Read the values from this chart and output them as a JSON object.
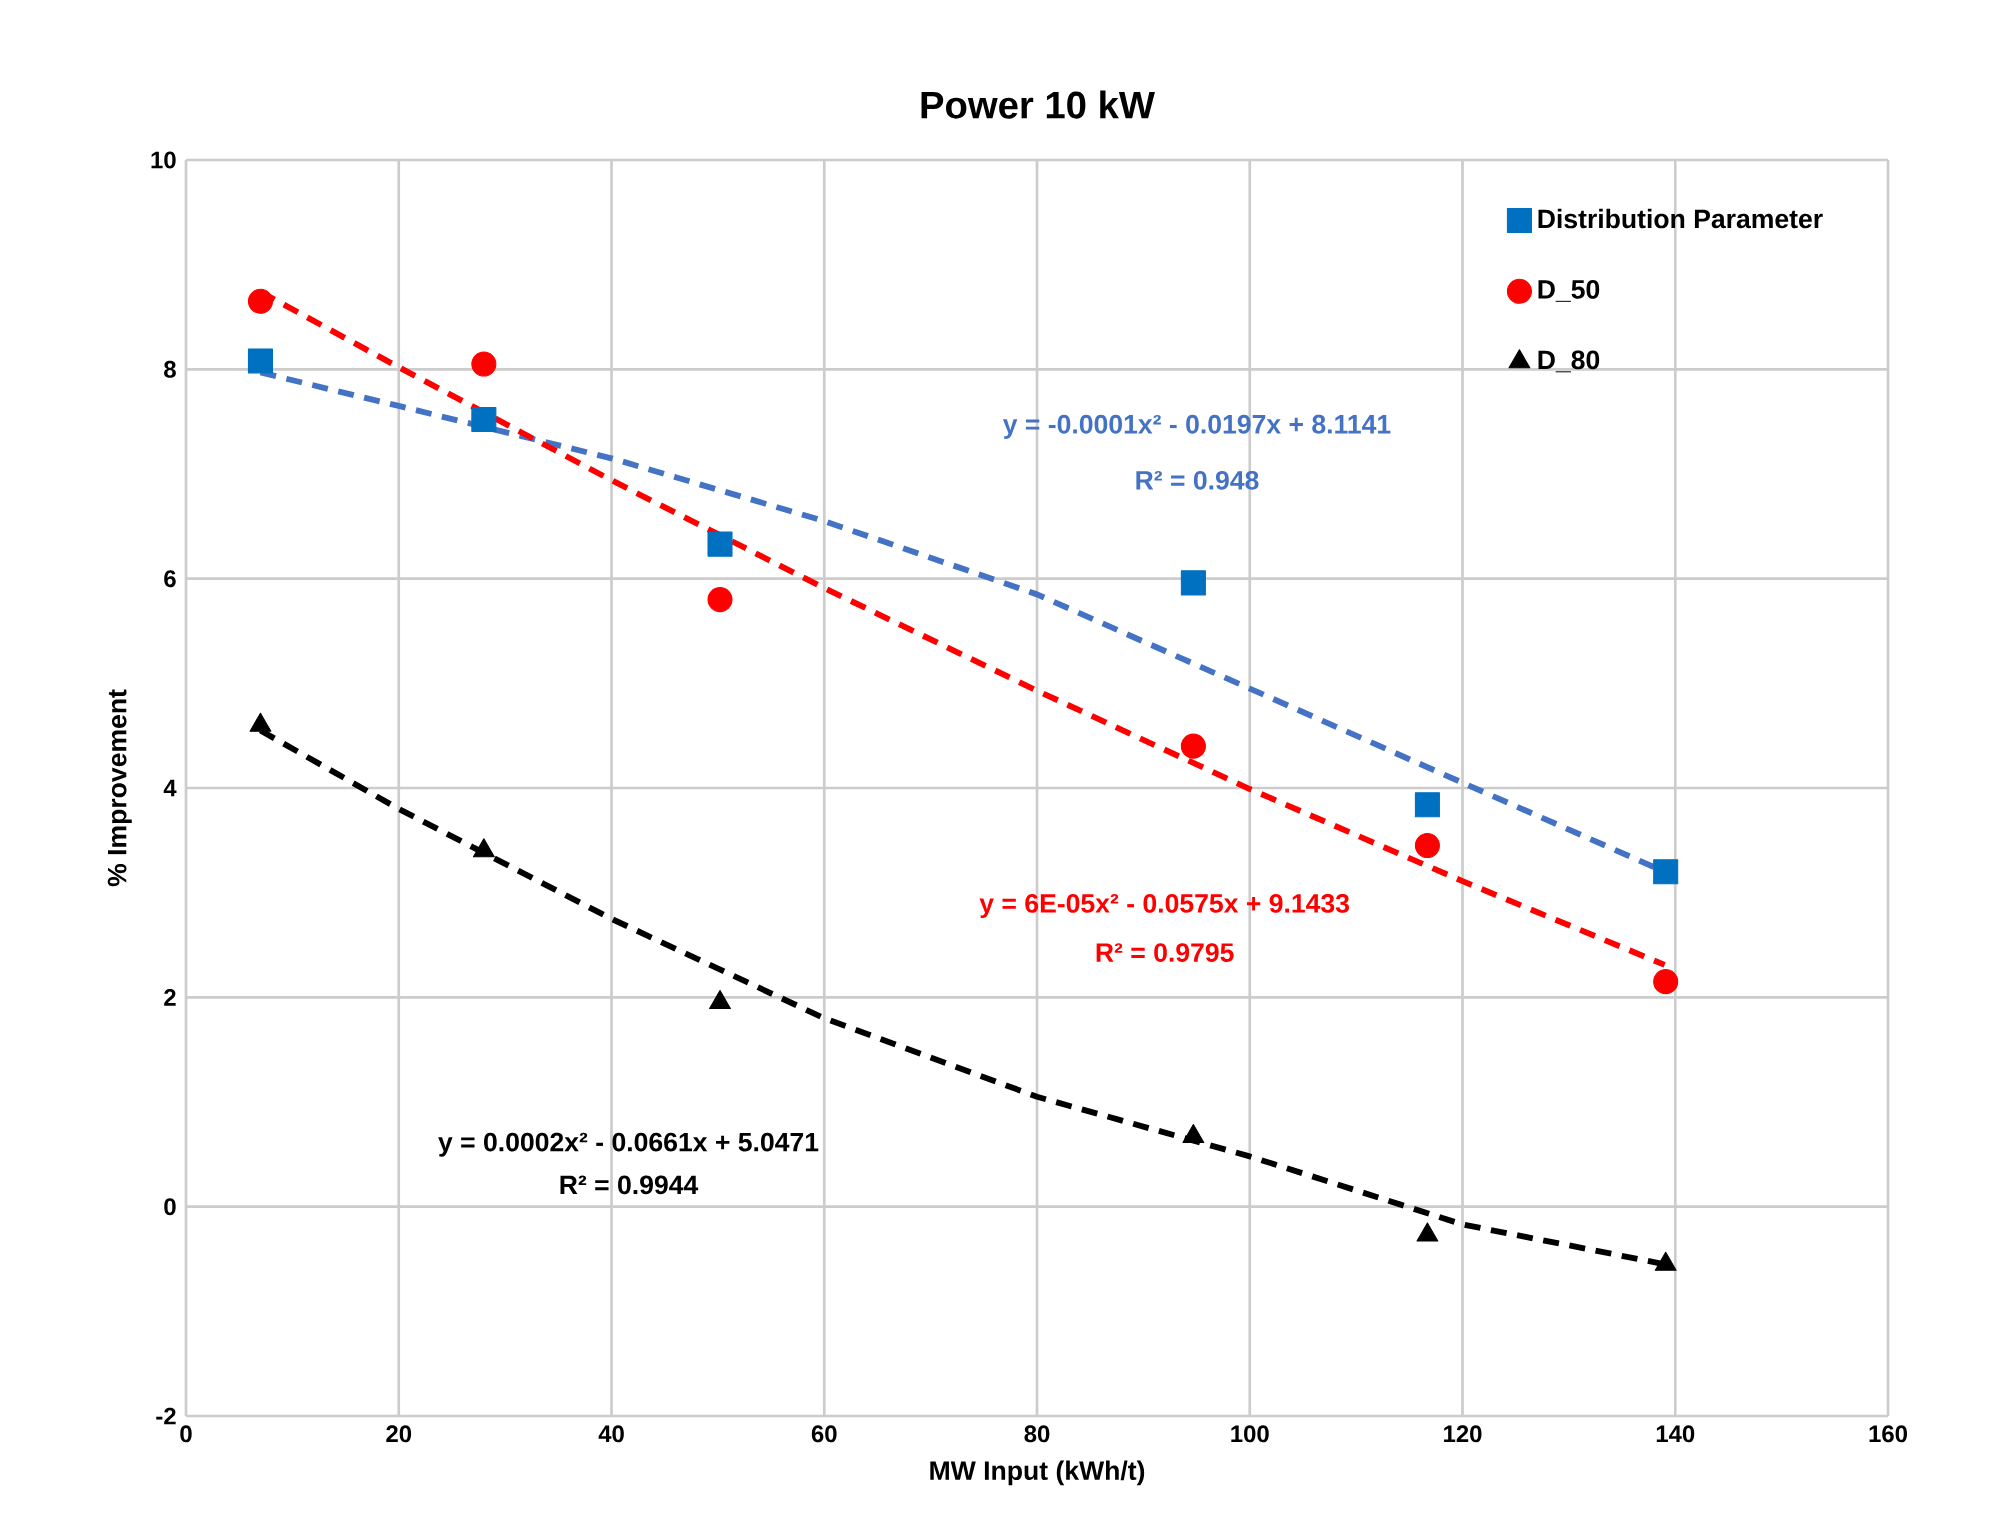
{
  "chart_data": {
    "type": "scatter",
    "title": "Power 10 kW",
    "xlabel": "MW Input (kWh/t)",
    "ylabel": "% Improvement",
    "xlim": [
      0,
      160
    ],
    "ylim": [
      -2,
      10
    ],
    "xticks": [
      0,
      20,
      40,
      60,
      80,
      100,
      120,
      140,
      160
    ],
    "yticks": [
      -2,
      0,
      2,
      4,
      6,
      8,
      10
    ],
    "grid": true,
    "legend": "top right",
    "series": [
      {
        "name": "Distribution Parameter",
        "color": "#0070c0",
        "marker": "square",
        "x": [
          7,
          28,
          50.2,
          94.7,
          116.7,
          139.1
        ],
        "values": [
          8.08,
          7.52,
          6.33,
          5.96,
          3.84,
          3.2
        ]
      },
      {
        "name": "D_50",
        "color": "#ff0000",
        "marker": "circle",
        "x": [
          7,
          28,
          50.2,
          94.7,
          116.7,
          139.1
        ],
        "values": [
          8.65,
          8.05,
          5.8,
          4.4,
          3.45,
          2.15
        ]
      },
      {
        "name": "D_80",
        "color": "#000000",
        "marker": "triangle",
        "x": [
          7,
          28,
          50.2,
          94.7,
          116.7,
          139.1
        ],
        "values": [
          4.6,
          3.4,
          1.95,
          0.67,
          -0.27,
          -0.55
        ]
      },
      {
        "type": "line",
        "color": "#4472c4",
        "line_style": "dashed",
        "marker": "none",
        "x": [
          7,
          20,
          40,
          60,
          80,
          100,
          120,
          139
        ],
        "values": [
          7.97,
          7.65,
          7.15,
          6.55,
          5.85,
          4.95,
          4.05,
          3.2
        ]
      },
      {
        "type": "line",
        "color": "#ff0000",
        "line_style": "dashed",
        "marker": "none",
        "x": [
          7,
          20,
          40,
          60,
          80,
          100,
          120,
          139
        ],
        "values": [
          8.74,
          8.02,
          6.94,
          5.91,
          4.93,
          3.99,
          3.11,
          2.31
        ]
      },
      {
        "type": "line",
        "color": "#000000",
        "line_style": "dashed",
        "marker": "none",
        "x": [
          7,
          20,
          40,
          60,
          80,
          100,
          120,
          139
        ],
        "values": [
          4.55,
          3.8,
          2.75,
          1.8,
          1.05,
          0.48,
          -0.17,
          -0.55
        ]
      }
    ],
    "annotations": [
      "y = -0.0001x² - 0.0197x + 8.1141",
      "R² = 0.948",
      "y = 6E-05x² - 0.0575x + 9.1433",
      "R² = 0.9795",
      "y = 0.0002x² - 0.0661x + 5.0471",
      "R² = 0.9944"
    ]
  }
}
